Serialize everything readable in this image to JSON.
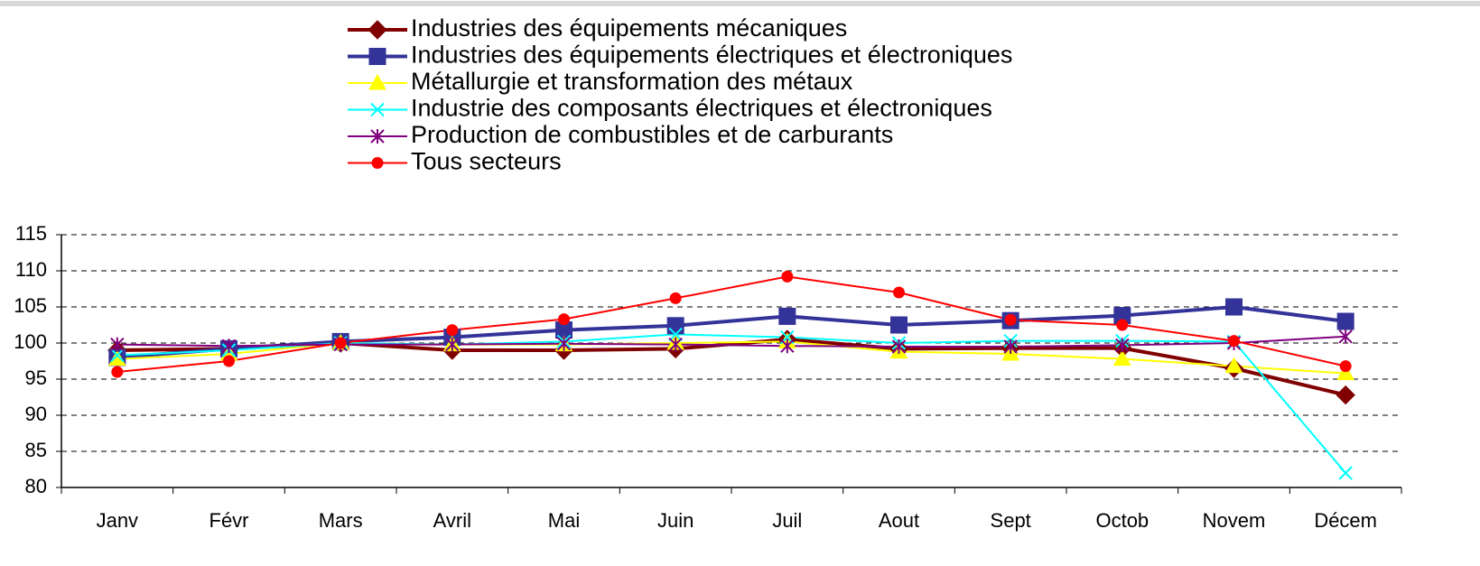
{
  "chart_data": {
    "type": "line",
    "categories": [
      "Janv",
      "Févr",
      "Mars",
      "Avril",
      "Mai",
      "Juin",
      "Juil",
      "Aout",
      "Sept",
      "Octob",
      "Novem",
      "Décem"
    ],
    "series": [
      {
        "name": "Industries des équipements mécaniques",
        "color": "#800000",
        "marker": "diamond",
        "width": 4,
        "values": [
          99,
          99.2,
          100,
          99,
          99,
          99.2,
          100.5,
          99.2,
          99.3,
          99.3,
          96.5,
          92.8
        ]
      },
      {
        "name": "Industries des équipements électriques et électroniques",
        "color": "#333399",
        "marker": "square",
        "width": 4,
        "values": [
          98,
          99.2,
          100.2,
          100.8,
          101.8,
          102.4,
          103.7,
          102.5,
          103.1,
          103.8,
          105,
          103
        ]
      },
      {
        "name": "Métallurgie et transformation des métaux",
        "color": "#ffff00",
        "marker": "triangle",
        "width": 2,
        "values": [
          97.8,
          98.5,
          100,
          99.8,
          99.8,
          100,
          100.2,
          98.8,
          98.5,
          97.8,
          96.8,
          95.8
        ]
      },
      {
        "name": "Industrie des composants électriques et électroniques",
        "color": "#00ffff",
        "marker": "x",
        "width": 2,
        "values": [
          98.3,
          99,
          100,
          99.8,
          100.2,
          101.2,
          100.8,
          100,
          100.3,
          100.3,
          100.2,
          82
        ]
      },
      {
        "name": "Production de combustibles et de carburants",
        "color": "#800080",
        "marker": "star",
        "width": 2,
        "values": [
          99.8,
          99.6,
          99.8,
          99.8,
          99.9,
          99.8,
          99.6,
          99.5,
          99.5,
          99.7,
          100,
          100.9
        ]
      },
      {
        "name": "Tous secteurs",
        "color": "#ff0000",
        "marker": "circle",
        "width": 2,
        "values": [
          96,
          97.5,
          100,
          101.8,
          103.3,
          106.2,
          109.2,
          107,
          103.2,
          102.5,
          100.3,
          96.8
        ]
      }
    ],
    "ylim": [
      80,
      115
    ],
    "yticks": [
      80,
      85,
      90,
      95,
      100,
      105,
      110,
      115
    ],
    "grid": true,
    "legend": "top"
  }
}
